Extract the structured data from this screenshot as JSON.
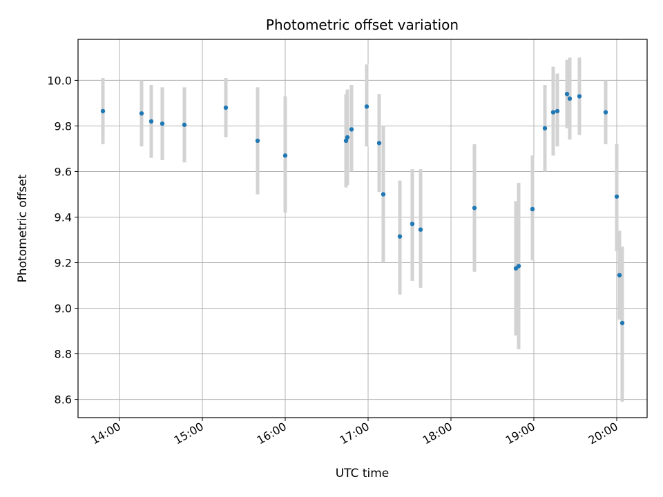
{
  "chart_data": {
    "type": "scatter",
    "title": "Photometric offset variation",
    "xlabel": "UTC time",
    "ylabel": "Photometric offset",
    "xlim": [
      "13:30",
      "20:22"
    ],
    "ylim": [
      8.52,
      10.18
    ],
    "x_ticks": [
      "14:00",
      "15:00",
      "16:00",
      "17:00",
      "18:00",
      "19:00",
      "20:00"
    ],
    "y_ticks": [
      "8.6",
      "8.8",
      "9.0",
      "9.2",
      "9.4",
      "9.6",
      "9.8",
      "10.0"
    ],
    "grid": true,
    "marker_color": "#1f77b4",
    "errorbar_color": "#d3d3d3",
    "points": [
      {
        "x": "13:48",
        "y": 9.865,
        "lo": 9.72,
        "hi": 10.01
      },
      {
        "x": "14:16",
        "y": 9.855,
        "lo": 9.71,
        "hi": 10.0
      },
      {
        "x": "14:23",
        "y": 9.82,
        "lo": 9.66,
        "hi": 9.98
      },
      {
        "x": "14:31",
        "y": 9.81,
        "lo": 9.65,
        "hi": 9.97
      },
      {
        "x": "14:47",
        "y": 9.805,
        "lo": 9.64,
        "hi": 9.97
      },
      {
        "x": "15:17",
        "y": 9.88,
        "lo": 9.75,
        "hi": 10.01
      },
      {
        "x": "15:40",
        "y": 9.735,
        "lo": 9.5,
        "hi": 9.97
      },
      {
        "x": "16:00",
        "y": 9.67,
        "lo": 9.42,
        "hi": 9.93
      },
      {
        "x": "16:44",
        "y": 9.735,
        "lo": 9.53,
        "hi": 9.94
      },
      {
        "x": "16:45",
        "y": 9.75,
        "lo": 9.54,
        "hi": 9.96
      },
      {
        "x": "16:48",
        "y": 9.785,
        "lo": 9.6,
        "hi": 9.98
      },
      {
        "x": "16:59",
        "y": 9.885,
        "lo": 9.71,
        "hi": 10.07
      },
      {
        "x": "17:08",
        "y": 9.725,
        "lo": 9.51,
        "hi": 9.94
      },
      {
        "x": "17:11",
        "y": 9.5,
        "lo": 9.2,
        "hi": 9.8
      },
      {
        "x": "17:23",
        "y": 9.315,
        "lo": 9.06,
        "hi": 9.56
      },
      {
        "x": "17:32",
        "y": 9.37,
        "lo": 9.12,
        "hi": 9.61
      },
      {
        "x": "17:38",
        "y": 9.345,
        "lo": 9.09,
        "hi": 9.61
      },
      {
        "x": "18:17",
        "y": 9.44,
        "lo": 9.16,
        "hi": 9.72
      },
      {
        "x": "18:47",
        "y": 9.175,
        "lo": 8.88,
        "hi": 9.47
      },
      {
        "x": "18:49",
        "y": 9.185,
        "lo": 8.82,
        "hi": 9.55
      },
      {
        "x": "18:59",
        "y": 9.435,
        "lo": 9.21,
        "hi": 9.67
      },
      {
        "x": "19:08",
        "y": 9.79,
        "lo": 9.6,
        "hi": 9.98
      },
      {
        "x": "19:14",
        "y": 9.86,
        "lo": 9.67,
        "hi": 10.06
      },
      {
        "x": "19:17",
        "y": 9.865,
        "lo": 9.71,
        "hi": 10.03
      },
      {
        "x": "19:24",
        "y": 9.94,
        "lo": 9.79,
        "hi": 10.09
      },
      {
        "x": "19:26",
        "y": 9.92,
        "lo": 9.74,
        "hi": 10.1
      },
      {
        "x": "19:33",
        "y": 9.93,
        "lo": 9.76,
        "hi": 10.1
      },
      {
        "x": "19:52",
        "y": 9.86,
        "lo": 9.72,
        "hi": 10.0
      },
      {
        "x": "20:00",
        "y": 9.49,
        "lo": 9.25,
        "hi": 9.72
      },
      {
        "x": "20:02",
        "y": 9.145,
        "lo": 8.95,
        "hi": 9.34
      },
      {
        "x": "20:04",
        "y": 8.935,
        "lo": 8.59,
        "hi": 9.27
      }
    ]
  }
}
